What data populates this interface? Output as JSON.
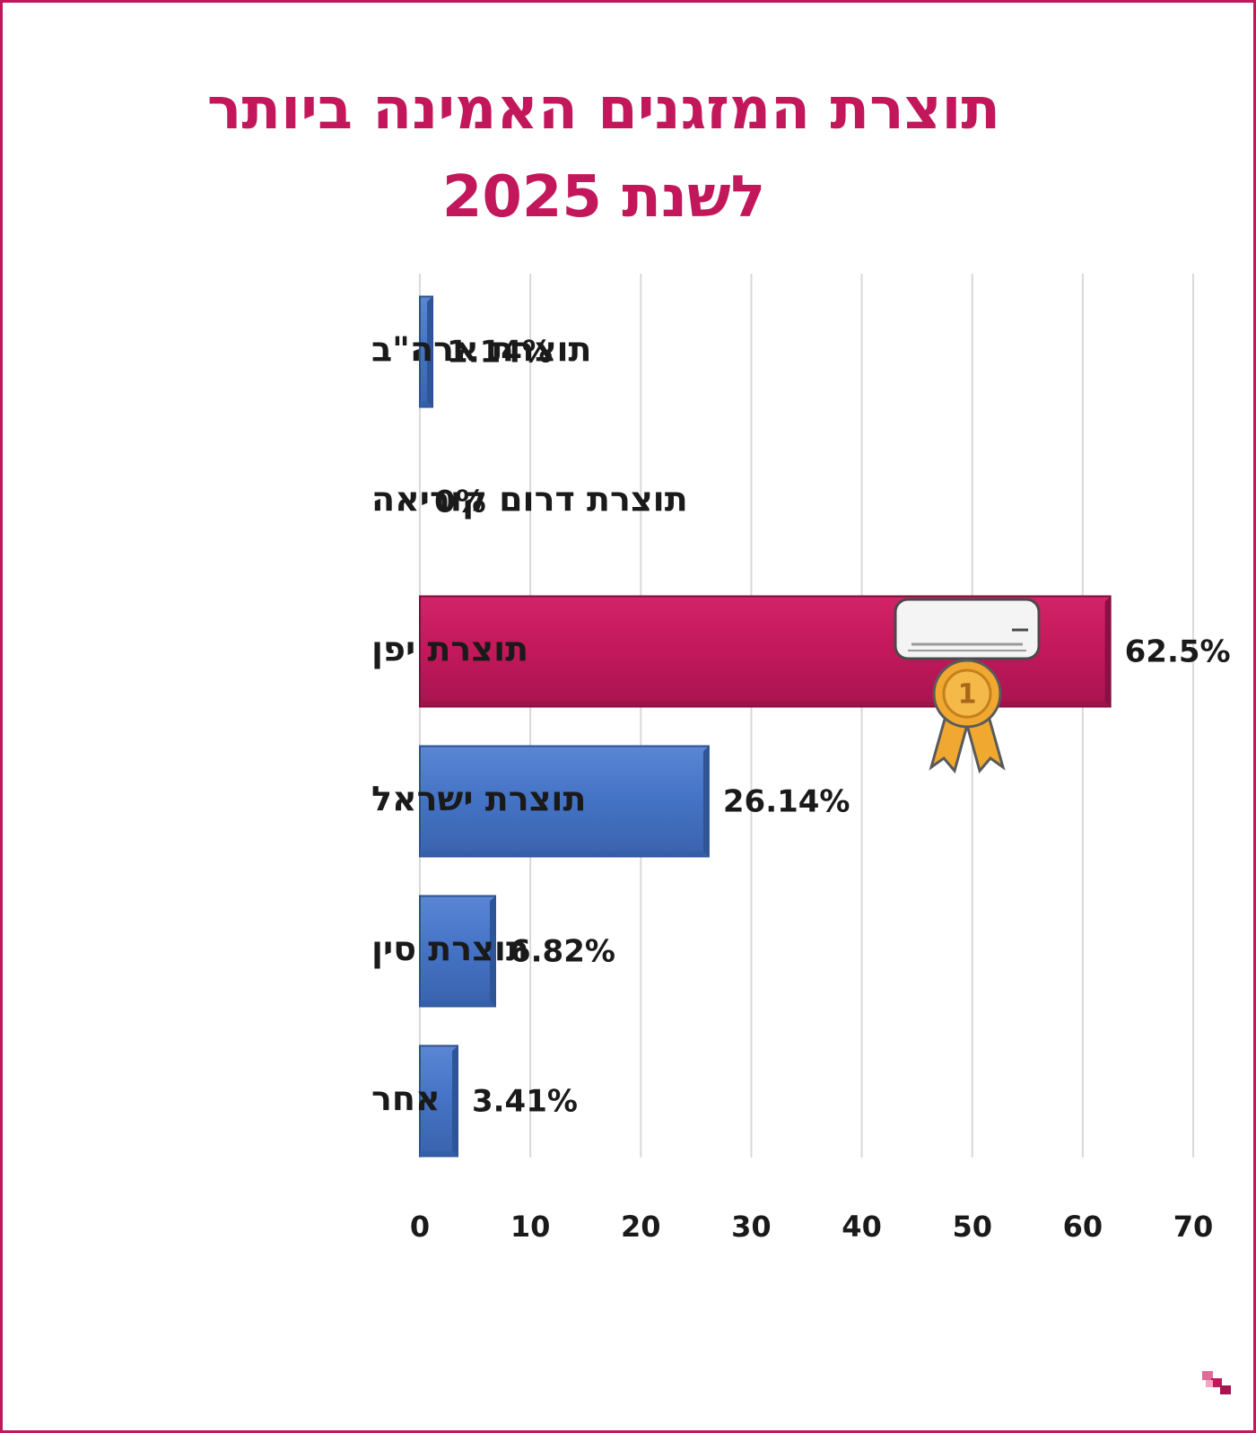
{
  "chart_data": {
    "type": "bar",
    "orientation": "horizontal",
    "title_lines": [
      "תוצרת המזגנים האמינה ביותר",
      "לשנת 2025"
    ],
    "categories": [
      "תוצרת ארה\"ב",
      "תוצרת דרום קוריאה",
      "תוצרת יפן",
      "תוצרת ישראל",
      "תוצרת סין",
      "אחר"
    ],
    "values": [
      1.14,
      0,
      62.5,
      26.14,
      6.82,
      3.41
    ],
    "value_labels": [
      "1.14%",
      "0%",
      "62.5%",
      "26.14%",
      "6.82%",
      "3.41%"
    ],
    "xlim": [
      0,
      70
    ],
    "xticks": [
      0,
      10,
      20,
      30,
      40,
      50,
      60,
      70
    ],
    "xtick_labels": [
      "0",
      "10",
      "20",
      "30",
      "40",
      "50",
      "60",
      "70"
    ],
    "grid": "vertical",
    "highlight_index": 2,
    "highlight_badge": "1",
    "colors": {
      "bar": "#4472c4",
      "bar_edge": "#2f528f",
      "highlight": "#c2185b",
      "highlight_edge": "#7d0f3a",
      "title": "#c2185b",
      "grid": "#d9d9d9",
      "medal": "#f0a830"
    },
    "icons": [
      "air-conditioner-icon",
      "medal-icon",
      "brand-logo-icon"
    ]
  }
}
